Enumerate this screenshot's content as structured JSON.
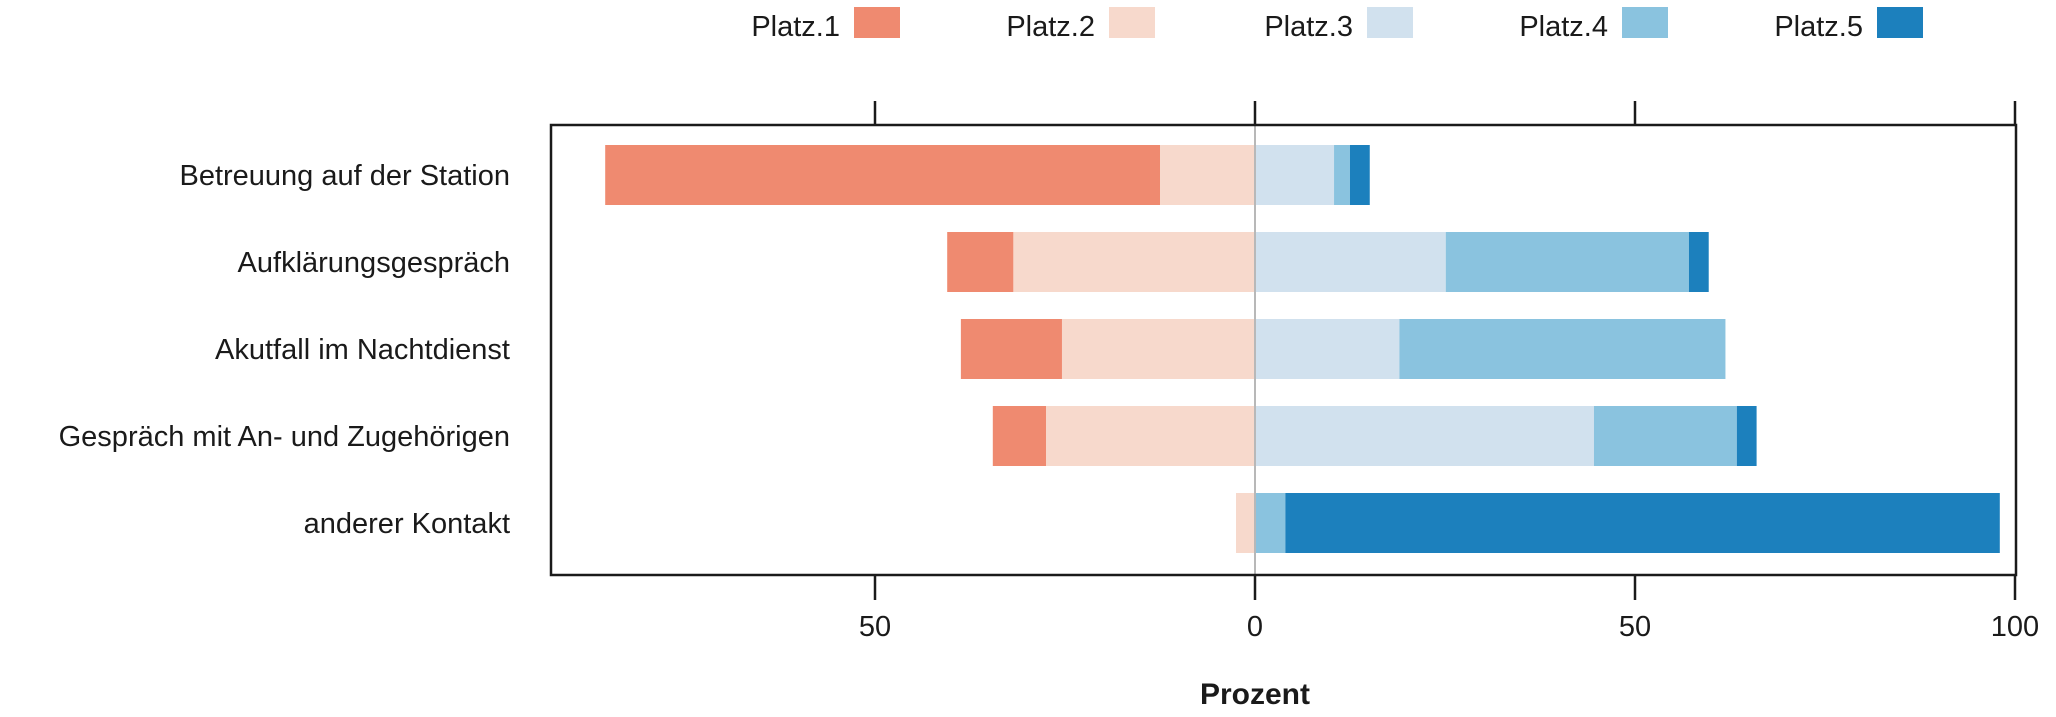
{
  "chart_data": {
    "type": "bar",
    "orientation": "horizontal",
    "stacking": "diverging",
    "categories": [
      "Betreuung auf der Station",
      "Aufklärungsgespräch",
      "Akutfall im Nachtdienst",
      "Gespräch mit An- und Zugehörigen",
      "anderer Kontakt"
    ],
    "series": [
      {
        "name": "Platz.1",
        "color": "#EF8A70",
        "side": "left",
        "values": [
          73,
          8.7,
          13.3,
          7,
          0
        ]
      },
      {
        "name": "Platz.2",
        "color": "#F7D9CC",
        "side": "left",
        "values": [
          12.5,
          31.8,
          25.4,
          27.5,
          2.5
        ]
      },
      {
        "name": "Platz.3",
        "color": "#D1E1EE",
        "side": "right",
        "values": [
          10.4,
          25.1,
          19,
          44.6,
          0
        ]
      },
      {
        "name": "Platz.4",
        "color": "#8AC3DF",
        "side": "right",
        "values": [
          2.1,
          32,
          42.9,
          18.8,
          4
        ]
      },
      {
        "name": "Platz.5",
        "color": "#1C80BD",
        "side": "right",
        "values": [
          2.6,
          2.6,
          0,
          2.6,
          94
        ]
      }
    ],
    "xlabel": "Prozent",
    "xlim": [
      -92,
      100
    ],
    "xticks": [
      -50,
      0,
      50,
      100
    ],
    "xtick_labels": [
      "50",
      "0",
      "50",
      "100"
    ],
    "legend_position": "top"
  }
}
